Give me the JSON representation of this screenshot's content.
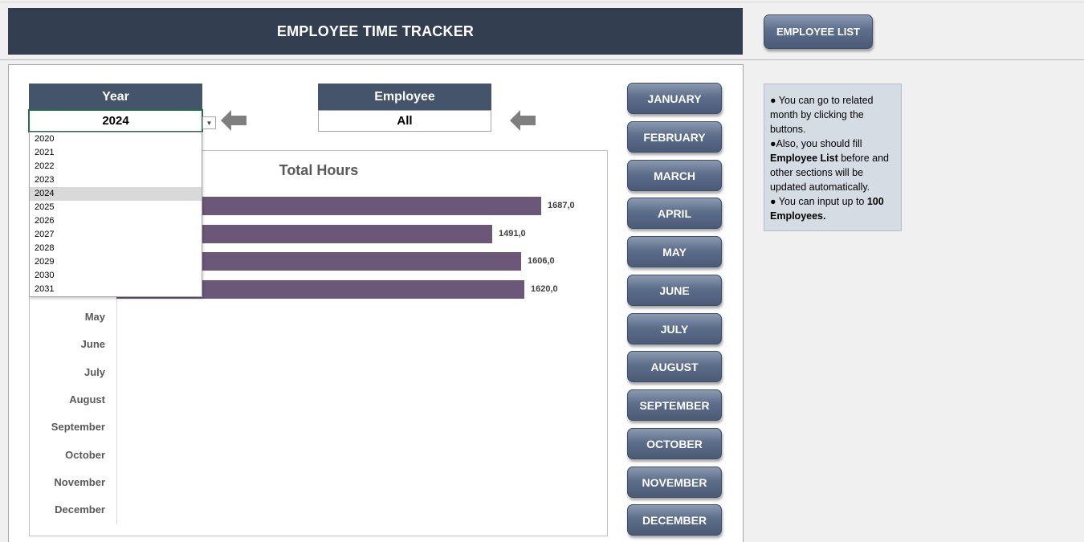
{
  "header": {
    "title": "EMPLOYEE TIME TRACKER"
  },
  "employee_list_button": {
    "label": "EMPLOYEE LIST"
  },
  "filters": {
    "year": {
      "label": "Year",
      "value": "2024"
    },
    "employee": {
      "label": "Employee",
      "value": "All"
    }
  },
  "year_dropdown": {
    "options": [
      "2020",
      "2021",
      "2022",
      "2023",
      "2024",
      "2025",
      "2026",
      "2027",
      "2028",
      "2029",
      "2030",
      "2031"
    ],
    "selected": "2024"
  },
  "chart_data": {
    "type": "bar",
    "title": "Total Hours",
    "categories_visible": [
      "May",
      "June",
      "July",
      "August",
      "September",
      "October",
      "November",
      "December"
    ],
    "bars": [
      {
        "value": 1687.0,
        "label": "1687,0"
      },
      {
        "value": 1491.0,
        "label": "1491,0"
      },
      {
        "value": 1606.0,
        "label": "1606,0"
      },
      {
        "value": 1620.0,
        "label": "1620,0"
      }
    ],
    "orientation": "horizontal",
    "bar_color": "#6b5878"
  },
  "month_buttons": [
    "JANUARY",
    "FEBRUARY",
    "MARCH",
    "APRIL",
    "MAY",
    "JUNE",
    "JULY",
    "AUGUST",
    "SEPTEMBER",
    "OCTOBER",
    "NOVEMBER",
    "DECEMBER"
  ],
  "info": {
    "l1": "● You can go to related month by clicking the buttons.",
    "l2a": "●Also, you should fill ",
    "l2b": "Employee List",
    "l2c": " before and other sections will be updated automatically.",
    "l3a": "● You can input up to ",
    "l3b": "100 Employees."
  },
  "colors": {
    "header_bg": "#333f50",
    "label_bg": "#44546a",
    "button_bg": "#5d6e8b",
    "info_bg": "#d6dce4"
  }
}
